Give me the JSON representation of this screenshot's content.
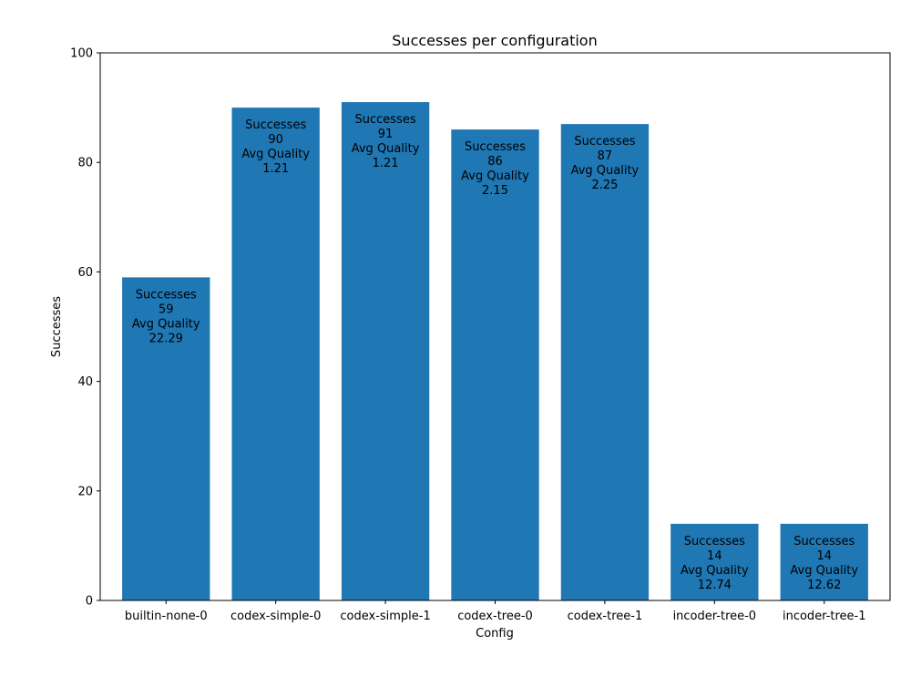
{
  "chart_data": {
    "type": "bar",
    "title": "Successes per configuration",
    "xlabel": "Config",
    "ylabel": "Successes",
    "ylim": [
      0,
      100
    ],
    "yticks": [
      0,
      20,
      40,
      60,
      80,
      100
    ],
    "grid": false,
    "bar_color": "#1f77b4",
    "categories": [
      "builtin-none-0",
      "codex-simple-0",
      "codex-simple-1",
      "codex-tree-0",
      "codex-tree-1",
      "incoder-tree-0",
      "incoder-tree-1"
    ],
    "values": [
      59,
      90,
      91,
      86,
      87,
      14,
      14
    ],
    "avg_quality": [
      "22.29",
      "1.21",
      "1.21",
      "2.15",
      "2.25",
      "12.74",
      "12.62"
    ],
    "label_texts": {
      "successes": "Successes",
      "avg_quality": "Avg Quality"
    }
  }
}
